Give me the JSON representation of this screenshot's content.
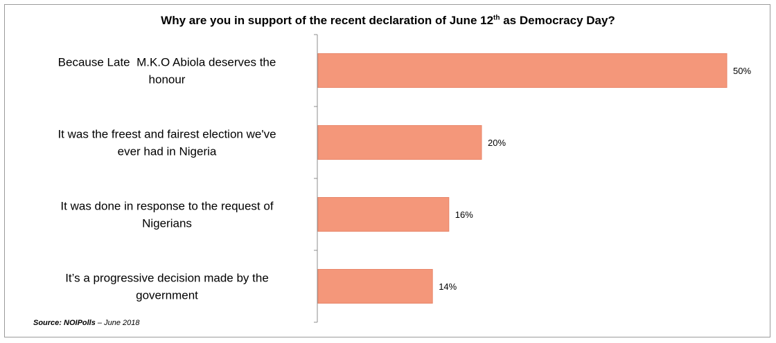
{
  "title": {
    "prefix": "Why are you in support of the recent declaration of June 12",
    "superscript": "th",
    "suffix": " as Democracy Day?"
  },
  "source": {
    "label": "Source: NOIPolls",
    "date": " – June 2018"
  },
  "colors": {
    "bar": "#f4977a",
    "bar_edge": "#e8866a",
    "axis": "#8c8c8c"
  },
  "chart_data": {
    "type": "bar",
    "orientation": "horizontal",
    "title": "Why are you in support of the recent declaration of June 12th as Democracy Day?",
    "categories": [
      [
        "Because Late  M.K.O Abiola deserves the",
        "honour"
      ],
      [
        "It was the freest and fairest election we've",
        "ever had in Nigeria"
      ],
      [
        "It was done in response to the request of",
        "Nigerians"
      ],
      [
        "It’s a progressive decision made by the",
        "government"
      ]
    ],
    "values": [
      50,
      20,
      16,
      14
    ],
    "value_labels": [
      "50%",
      "20%",
      "16%",
      "14%"
    ],
    "unit": "%",
    "xlim": [
      0,
      50
    ],
    "grid": false,
    "legend": "none"
  }
}
